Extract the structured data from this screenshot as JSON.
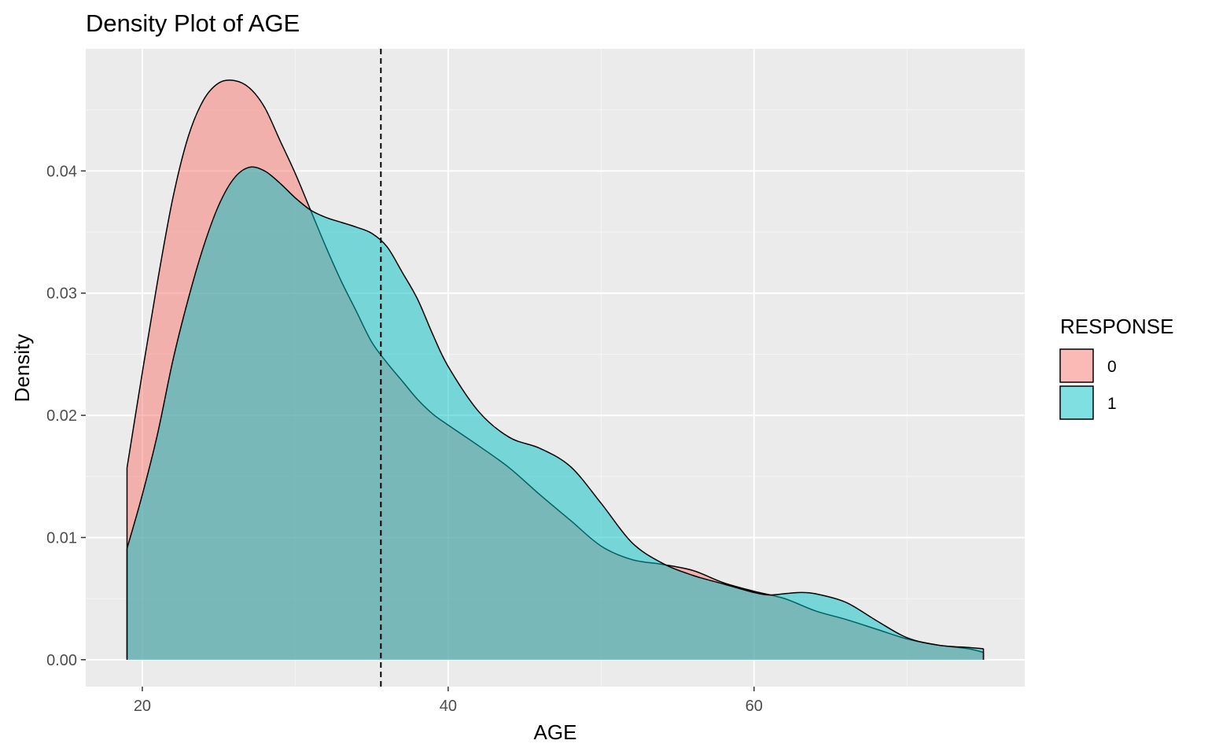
{
  "chart_data": {
    "type": "area",
    "title": "Density Plot of AGE",
    "xlabel": "AGE",
    "ylabel": "Density",
    "xlim": [
      16.3,
      77.7
    ],
    "ylim": [
      -0.0022,
      0.05
    ],
    "x_ticks": [
      20,
      40,
      60
    ],
    "x_minor_grid": [
      30,
      50,
      70
    ],
    "y_ticks": [
      0.0,
      0.01,
      0.02,
      0.03,
      0.04
    ],
    "y_tick_labels": [
      "0.00",
      "0.01",
      "0.02",
      "0.03",
      "0.04"
    ],
    "y_minor_grid": [
      0.005,
      0.015,
      0.025,
      0.035,
      0.045
    ],
    "grid": true,
    "reference_line": {
      "x": 35.6,
      "style": "dashed"
    },
    "legend": {
      "title": "RESPONSE",
      "position": "right",
      "entries": [
        {
          "label": "0",
          "color": "#F8766D"
        },
        {
          "label": "1",
          "color": "#00BFC4"
        }
      ]
    },
    "series": [
      {
        "name": "0",
        "color": "#F8766D",
        "x": [
          19,
          20,
          21,
          22,
          23,
          24,
          25,
          26,
          27,
          28,
          29,
          30,
          31,
          32,
          33,
          34,
          35,
          36,
          37,
          38,
          39,
          40,
          42,
          44,
          46,
          48,
          50,
          52,
          54,
          56,
          58,
          60,
          62,
          64,
          66,
          68,
          70,
          72,
          74,
          75
        ],
        "y": [
          0.0157,
          0.0235,
          0.031,
          0.0378,
          0.0428,
          0.0458,
          0.0472,
          0.0474,
          0.0468,
          0.0452,
          0.0425,
          0.0398,
          0.0368,
          0.0338,
          0.031,
          0.0285,
          0.026,
          0.0243,
          0.0228,
          0.0213,
          0.0201,
          0.0192,
          0.0175,
          0.0157,
          0.0135,
          0.0114,
          0.0093,
          0.0082,
          0.0078,
          0.0073,
          0.0063,
          0.0056,
          0.005,
          0.004,
          0.0033,
          0.0025,
          0.0017,
          0.0012,
          0.0009,
          0.0006
        ]
      },
      {
        "name": "1",
        "color": "#00BFC4",
        "x": [
          19,
          20,
          21,
          22,
          23,
          24,
          25,
          26,
          27,
          28,
          29,
          30,
          31,
          32,
          33,
          34,
          35,
          36,
          37,
          38,
          39,
          40,
          42,
          44,
          46,
          48,
          50,
          52,
          54,
          56,
          58,
          60,
          61,
          62,
          63,
          64,
          66,
          68,
          70,
          72,
          74,
          75
        ],
        "y": [
          0.0091,
          0.0135,
          0.0185,
          0.0245,
          0.0295,
          0.0338,
          0.0372,
          0.0394,
          0.0403,
          0.04,
          0.039,
          0.0378,
          0.0368,
          0.0362,
          0.0358,
          0.0354,
          0.0349,
          0.0338,
          0.0317,
          0.0295,
          0.0266,
          0.024,
          0.0203,
          0.0182,
          0.0173,
          0.0158,
          0.0128,
          0.0096,
          0.0079,
          0.0069,
          0.0062,
          0.0055,
          0.0053,
          0.0054,
          0.0055,
          0.0054,
          0.0047,
          0.0032,
          0.0018,
          0.0012,
          0.001,
          0.0009
        ]
      }
    ]
  }
}
